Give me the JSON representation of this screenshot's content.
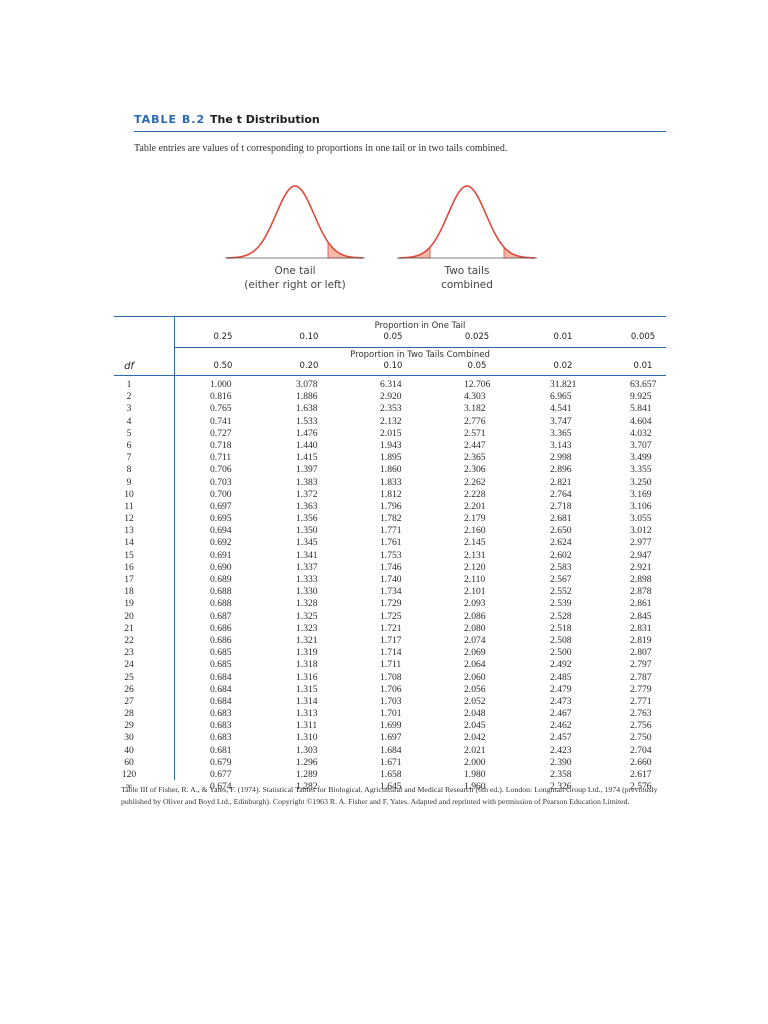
{
  "header": {
    "label": "TABLE B.2",
    "title": "The t Distribution"
  },
  "intro": "Table entries are values of t corresponding to proportions in one tail or in two tails combined.",
  "figure": {
    "one_tail_label_1": "One tail",
    "one_tail_label_2": "(either right or left)",
    "two_tail_label_1": "Two tails",
    "two_tail_label_2": "combined",
    "curve_color": "#e04a3a",
    "shade_color": "#f5b9a8"
  },
  "table": {
    "one_tail_heading": "Proportion in One Tail",
    "two_tail_heading": "Proportion in Two Tails Combined",
    "df_heading": "df",
    "one_tail": [
      "0.25",
      "0.10",
      "0.05",
      "0.025",
      "0.01",
      "0.005"
    ],
    "two_tail": [
      "0.50",
      "0.20",
      "0.10",
      "0.05",
      "0.02",
      "0.01"
    ],
    "rows": [
      [
        "1",
        "1.000",
        "3.078",
        "6.314",
        "12.706",
        "31.821",
        "63.657"
      ],
      [
        "2",
        "0.816",
        "1.886",
        "2.920",
        "4.303",
        "6.965",
        "9.925"
      ],
      [
        "3",
        "0.765",
        "1.638",
        "2.353",
        "3.182",
        "4.541",
        "5.841"
      ],
      [
        "4",
        "0.741",
        "1.533",
        "2.132",
        "2.776",
        "3.747",
        "4.604"
      ],
      [
        "5",
        "0.727",
        "1.476",
        "2.015",
        "2.571",
        "3.365",
        "4.032"
      ],
      [
        "6",
        "0.718",
        "1.440",
        "1.943",
        "2.447",
        "3.143",
        "3.707"
      ],
      [
        "7",
        "0.711",
        "1.415",
        "1.895",
        "2.365",
        "2.998",
        "3.499"
      ],
      [
        "8",
        "0.706",
        "1.397",
        "1.860",
        "2.306",
        "2.896",
        "3.355"
      ],
      [
        "9",
        "0.703",
        "1.383",
        "1.833",
        "2.262",
        "2.821",
        "3.250"
      ],
      [
        "10",
        "0.700",
        "1.372",
        "1.812",
        "2.228",
        "2.764",
        "3.169"
      ],
      [
        "11",
        "0.697",
        "1.363",
        "1.796",
        "2.201",
        "2.718",
        "3.106"
      ],
      [
        "12",
        "0.695",
        "1.356",
        "1.782",
        "2.179",
        "2.681",
        "3.055"
      ],
      [
        "13",
        "0.694",
        "1.350",
        "1.771",
        "2.160",
        "2.650",
        "3.012"
      ],
      [
        "14",
        "0.692",
        "1.345",
        "1.761",
        "2.145",
        "2.624",
        "2.977"
      ],
      [
        "15",
        "0.691",
        "1.341",
        "1.753",
        "2.131",
        "2.602",
        "2.947"
      ],
      [
        "16",
        "0.690",
        "1.337",
        "1.746",
        "2.120",
        "2.583",
        "2.921"
      ],
      [
        "17",
        "0.689",
        "1.333",
        "1.740",
        "2.110",
        "2.567",
        "2.898"
      ],
      [
        "18",
        "0.688",
        "1.330",
        "1.734",
        "2.101",
        "2.552",
        "2.878"
      ],
      [
        "19",
        "0.688",
        "1.328",
        "1.729",
        "2.093",
        "2.539",
        "2.861"
      ],
      [
        "20",
        "0.687",
        "1.325",
        "1.725",
        "2.086",
        "2.528",
        "2.845"
      ],
      [
        "21",
        "0.686",
        "1.323",
        "1.721",
        "2.080",
        "2.518",
        "2.831"
      ],
      [
        "22",
        "0.686",
        "1.321",
        "1.717",
        "2.074",
        "2.508",
        "2.819"
      ],
      [
        "23",
        "0.685",
        "1.319",
        "1.714",
        "2.069",
        "2.500",
        "2.807"
      ],
      [
        "24",
        "0.685",
        "1.318",
        "1.711",
        "2.064",
        "2.492",
        "2.797"
      ],
      [
        "25",
        "0.684",
        "1.316",
        "1.708",
        "2.060",
        "2.485",
        "2.787"
      ],
      [
        "26",
        "0.684",
        "1.315",
        "1.706",
        "2.056",
        "2.479",
        "2.779"
      ],
      [
        "27",
        "0.684",
        "1.314",
        "1.703",
        "2.052",
        "2.473",
        "2.771"
      ],
      [
        "28",
        "0.683",
        "1.313",
        "1.701",
        "2.048",
        "2.467",
        "2.763"
      ],
      [
        "29",
        "0.683",
        "1.311",
        "1.699",
        "2.045",
        "2.462",
        "2.756"
      ],
      [
        "30",
        "0.683",
        "1.310",
        "1.697",
        "2.042",
        "2.457",
        "2.750"
      ],
      [
        "40",
        "0.681",
        "1.303",
        "1.684",
        "2.021",
        "2.423",
        "2.704"
      ],
      [
        "60",
        "0.679",
        "1.296",
        "1.671",
        "2.000",
        "2.390",
        "2.660"
      ],
      [
        "120",
        "0.677",
        "1.289",
        "1.658",
        "1.980",
        "2.358",
        "2.617"
      ],
      [
        "∞",
        "0.674",
        "1.282",
        "1.645",
        "1.960",
        "2.326",
        "2.576"
      ]
    ]
  },
  "footnote": "Table III of Fisher, R. A., & Yates, F. (1974). Statistical Tables for Biological, Agricultural and Medical Research (6th ed.). London: Longman Group Ltd., 1974 (previously published by Oliver and Boyd Ltd., Edinburgh). Copyright ©1963 R. A. Fisher and F. Yates. Adapted and reprinted with permission of Pearson Education Limited."
}
